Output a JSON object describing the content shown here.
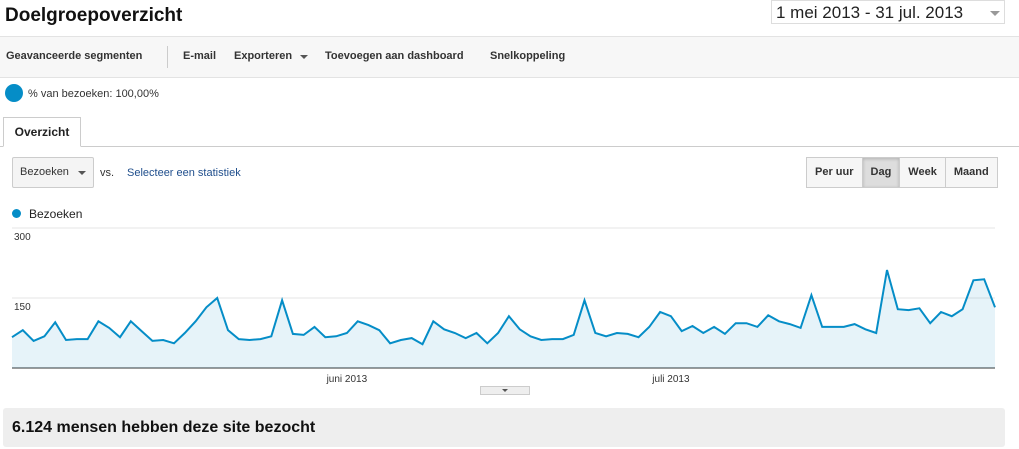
{
  "header": {
    "title": "Doelgroepoverzicht",
    "date_range": "1 mei 2013 - 31 jul. 2013"
  },
  "toolbar": {
    "items": [
      "Geavanceerde segmenten",
      "E-mail",
      "Exporteren",
      "Toevoegen aan dashboard",
      "Snelkoppeling"
    ]
  },
  "segment": {
    "label": "% van bezoeken: 100,00%"
  },
  "tabs": [
    "Overzicht"
  ],
  "controls": {
    "metric": "Bezoeken",
    "vs": "vs.",
    "compare": "Selecteer een statistiek",
    "intervals": [
      "Per uur",
      "Dag",
      "Week",
      "Maand"
    ],
    "active_interval": "Dag"
  },
  "chart_data": {
    "type": "area",
    "categories": [
      null,
      null,
      null,
      null,
      null,
      null,
      null,
      null,
      null,
      null,
      null,
      null,
      null,
      null,
      null,
      null,
      null,
      null,
      null,
      null,
      null,
      null,
      null,
      null,
      null,
      null,
      null,
      null,
      null,
      null,
      null,
      "juni 2013",
      null,
      null,
      null,
      null,
      null,
      null,
      null,
      null,
      null,
      null,
      null,
      null,
      null,
      null,
      null,
      null,
      null,
      null,
      null,
      null,
      null,
      null,
      null,
      null,
      null,
      null,
      null,
      null,
      null,
      "juli 2013",
      null,
      null,
      null,
      null,
      null,
      null,
      null,
      null,
      null,
      null,
      null,
      null,
      null,
      null,
      null,
      null,
      null,
      null,
      null,
      null,
      null,
      null,
      null,
      null,
      null,
      null,
      null,
      null,
      null,
      null
    ],
    "series": [
      {
        "name": "Bezoeken",
        "color": "#058dc7",
        "values": [
          66,
          81,
          58,
          68,
          98,
          60,
          62,
          62,
          100,
          86,
          66,
          100,
          79,
          58,
          60,
          53,
          75,
          100,
          130,
          150,
          81,
          62,
          60,
          62,
          68,
          145,
          73,
          71,
          88,
          66,
          68,
          75,
          100,
          92,
          81,
          53,
          60,
          64,
          51,
          100,
          83,
          75,
          64,
          75,
          53,
          75,
          111,
          83,
          68,
          60,
          62,
          62,
          71,
          145,
          75,
          68,
          75,
          73,
          66,
          88,
          120,
          111,
          79,
          90,
          75,
          88,
          73,
          96,
          96,
          88,
          113,
          100,
          94,
          86,
          156,
          88,
          88,
          88,
          94,
          83,
          75,
          210,
          126,
          124,
          128,
          96,
          120,
          111,
          126,
          188,
          190,
          130
        ]
      }
    ],
    "ylim": [
      0,
      300
    ],
    "yticks": [
      150,
      300
    ],
    "grid": true
  },
  "summary": "6.124 mensen hebben deze site bezocht"
}
